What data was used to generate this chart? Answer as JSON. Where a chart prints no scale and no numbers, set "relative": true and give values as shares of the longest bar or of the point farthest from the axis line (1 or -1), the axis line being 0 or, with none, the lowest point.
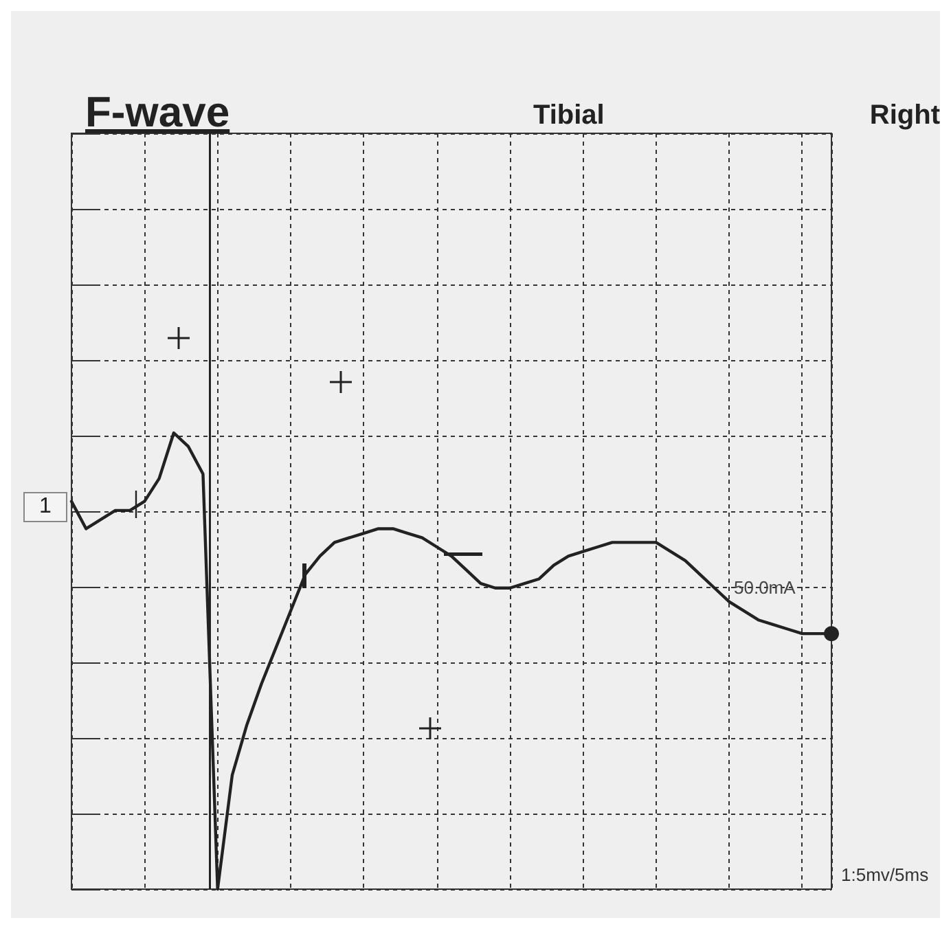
{
  "chart_data": {
    "type": "line",
    "title": "F-wave",
    "subtitle": "Tibial",
    "annotations": [
      "Right",
      "1",
      "50.0mA",
      "1:5mv/5ms"
    ],
    "relative": true,
    "grid": true,
    "color": "#222222",
    "categories": [
      null,
      null,
      null,
      null,
      null,
      null,
      null,
      null,
      null,
      null,
      null,
      null,
      null,
      null,
      null,
      null,
      null,
      null,
      null,
      null,
      null,
      null,
      null,
      null,
      null,
      null,
      null,
      null,
      null,
      null,
      null,
      null,
      null,
      null,
      null,
      null,
      null,
      null,
      null,
      null,
      null,
      null,
      null,
      null,
      null,
      null,
      null,
      null,
      null,
      null,
      null,
      null,
      null
    ],
    "values": [
      0.85,
      0.79,
      0.81,
      0.83,
      0.83,
      0.85,
      0.9,
      1,
      0.97,
      0.91,
      0,
      0.25,
      0.36,
      0.45,
      0.53,
      0.61,
      0.69,
      0.73,
      0.76,
      0.77,
      0.78,
      0.79,
      0.79,
      0.78,
      0.77,
      0.75,
      0.73,
      0.7,
      0.67,
      0.66,
      0.66,
      0.67,
      0.68,
      0.71,
      0.73,
      0.74,
      0.75,
      0.76,
      0.76,
      0.76,
      0.76,
      0.74,
      0.72,
      0.69,
      0.66,
      0.63,
      0.61,
      0.59,
      0.58,
      0.57,
      0.56,
      0.56,
      0.56
    ]
  }
}
